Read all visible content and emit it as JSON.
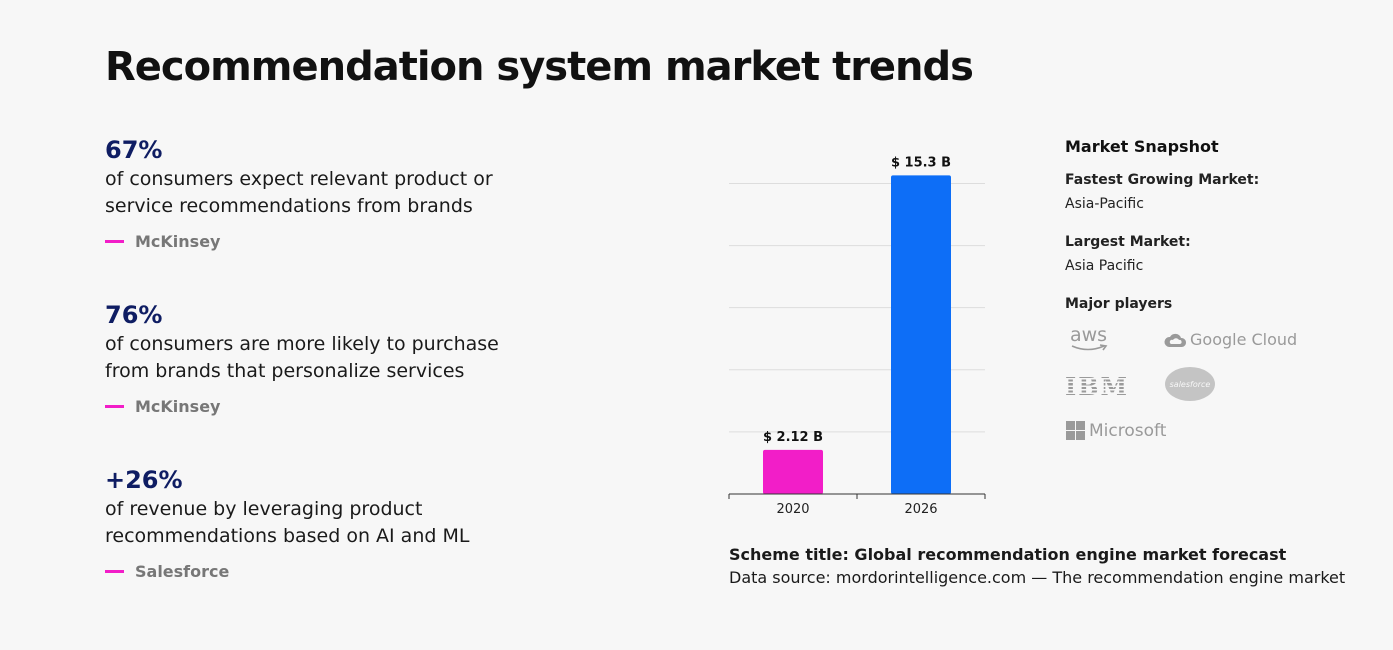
{
  "title": "Recommendation system market trends",
  "stats": [
    {
      "value": "67%",
      "text": "of consumers expect relevant product or service recommendations from brands",
      "source": "McKinsey"
    },
    {
      "value": "76%",
      "text": "of consumers are more likely to purchase from brands that personalize services",
      "source": "McKinsey"
    },
    {
      "value": "+26%",
      "text": "of revenue by leveraging product recommendations based on AI and ML",
      "source": "Salesforce"
    }
  ],
  "chart_data": {
    "type": "bar",
    "categories": [
      "2020",
      "2026"
    ],
    "values": [
      2.12,
      15.3
    ],
    "data_labels": [
      "$ 2.12 B",
      "$ 15.3 B"
    ],
    "colors": [
      "#f21ec8",
      "#0d6ef7"
    ],
    "ylim": [
      0,
      17
    ],
    "grid": true,
    "xlabel": "",
    "ylabel": ""
  },
  "caption": {
    "title": "Scheme title: Global recommendation engine market forecast",
    "source": "Data source: mordorintelligence.com — The recommendation engine market"
  },
  "snapshot": {
    "heading": "Market Snapshot",
    "fastest_label": "Fastest Growing Market:",
    "fastest_value": "Asia-Pacific",
    "largest_label": "Largest Market:",
    "largest_value": "Asia Pacific",
    "players_label": "Major players",
    "players": [
      "aws",
      "Google Cloud",
      "IBM",
      "salesforce",
      "Microsoft"
    ]
  }
}
